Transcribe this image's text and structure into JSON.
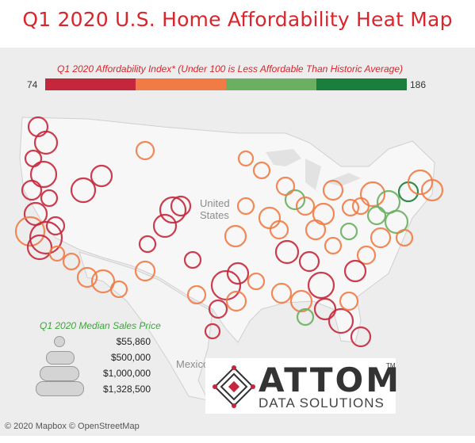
{
  "title": "Q1 2020 U.S. Home Affordability Heat Map",
  "legend": {
    "title": "Q1 2020 Affordability Index* (Under 100 is Less Affordable Than Historic Average)",
    "min": "74",
    "max": "186",
    "colors": [
      "#c4273b",
      "#f07b45",
      "#6aaf62",
      "#1a7e3c"
    ]
  },
  "map_labels": {
    "country1": "United",
    "country2": "States",
    "country3": "Mexico"
  },
  "size_legend": {
    "title": "Q1 2020 Median Sales Price",
    "items": [
      "$55,860",
      "$500,000",
      "$1,000,000",
      "$1,328,500"
    ]
  },
  "logo": {
    "name": "ATTOM",
    "tm": "TM",
    "subtitle": "DATA SOLUTIONS"
  },
  "attribution": "© 2020 Mapbox © OpenStreetMap"
}
